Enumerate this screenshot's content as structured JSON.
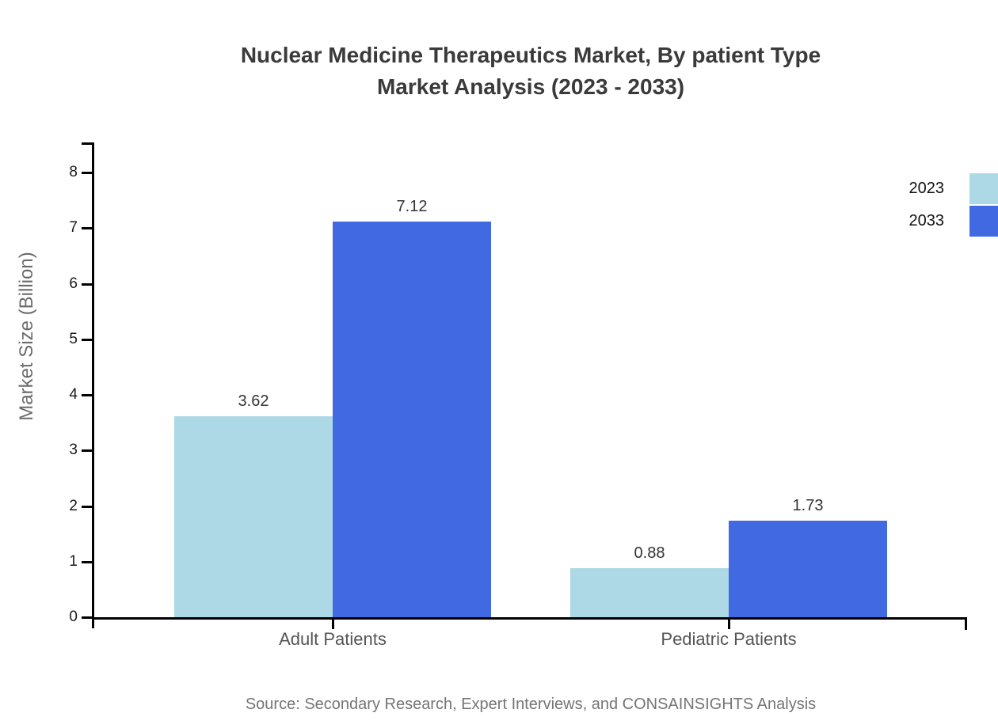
{
  "title": {
    "line1": "Nuclear Medicine Therapeutics Market, By patient Type",
    "line2": "Market Analysis (2023 - 2033)"
  },
  "source": "Source: Secondary Research, Expert Interviews, and CONSAINSIGHTS Analysis",
  "chart_data": {
    "type": "bar",
    "title": "Nuclear Medicine Therapeutics Market, By patient Type Market Analysis (2023 - 2033)",
    "categories": [
      "Adult Patients",
      "Pediatric Patients"
    ],
    "series": [
      {
        "name": "2023",
        "values": [
          3.62,
          0.88
        ],
        "labels": [
          "3.62",
          "0.88"
        ],
        "color": "#ADD8E6"
      },
      {
        "name": "2033",
        "values": [
          7.12,
          1.73
        ],
        "labels": [
          "7.12",
          "1.73"
        ],
        "color": "#4169E1"
      }
    ],
    "xlabel": "",
    "ylabel": "Market Size (Billion)",
    "ylim": [
      0,
      8
    ],
    "yticks": [
      0,
      1,
      2,
      3,
      4,
      5,
      6,
      7,
      8
    ],
    "legend_position": "top-right",
    "grid": false
  },
  "colors": {
    "series_2023": "#ADD8E6",
    "series_2033": "#4169E1",
    "axis": "#000000",
    "title_text": "#3A3A3A",
    "muted_text": "#757575"
  }
}
